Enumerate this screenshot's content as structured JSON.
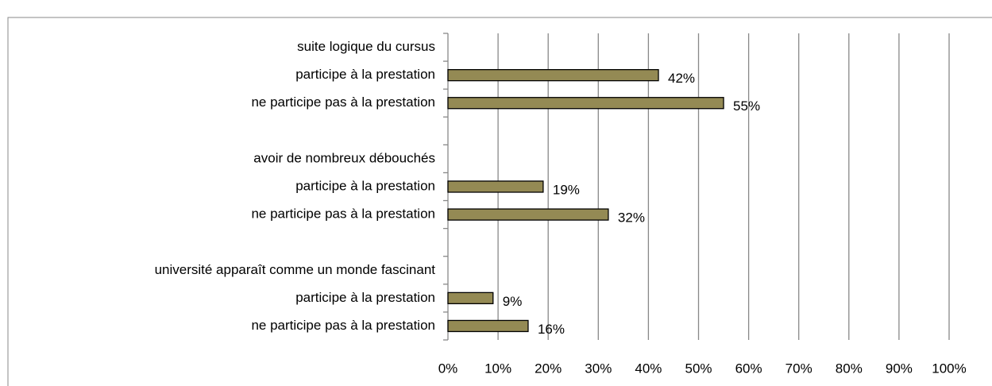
{
  "chart_data": {
    "type": "bar",
    "orientation": "horizontal",
    "categories": [
      "suite logique du cursus",
      "participe à la prestation",
      "ne participe pas à la prestation",
      null,
      "avoir de nombreux débouchés",
      "participe à la prestation",
      "ne participe pas à la prestation",
      null,
      "université apparaît comme un monde fascinant",
      "participe à la prestation",
      "ne participe pas à la prestation"
    ],
    "values": [
      null,
      42,
      55,
      null,
      null,
      19,
      32,
      null,
      null,
      9,
      16
    ],
    "value_labels": [
      null,
      "42%",
      "55%",
      null,
      null,
      "19%",
      "32%",
      null,
      null,
      "9%",
      "16%"
    ],
    "color": "#948a54",
    "xlim": [
      0,
      100
    ],
    "xticks": [
      {
        "value": 0,
        "label": "0%"
      },
      {
        "value": 10,
        "label": "10%"
      },
      {
        "value": 20,
        "label": "20%"
      },
      {
        "value": 30,
        "label": "30%"
      },
      {
        "value": 40,
        "label": "40%"
      },
      {
        "value": 50,
        "label": "50%"
      },
      {
        "value": 60,
        "label": "60%"
      },
      {
        "value": 70,
        "label": "70%"
      },
      {
        "value": 80,
        "label": "80%"
      },
      {
        "value": 90,
        "label": "90%"
      },
      {
        "value": 100,
        "label": "100%"
      }
    ],
    "grid": true
  }
}
